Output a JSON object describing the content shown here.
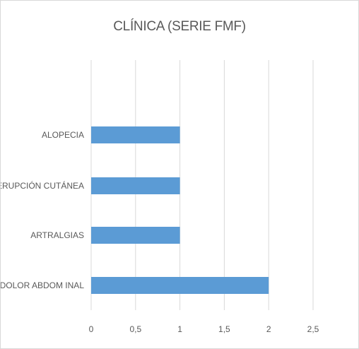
{
  "chart_data": {
    "type": "bar",
    "orientation": "horizontal",
    "title": "CLÍNICA (SERIE FMF)",
    "categories": [
      "ALOPECIA",
      "ERUPCIÓN CUTÁNEA",
      "ARTRALGIAS",
      "DOLOR ABDOM INAL"
    ],
    "values": [
      1,
      1,
      1,
      2
    ],
    "x_ticks": [
      "0",
      "0,5",
      "1",
      "1,5",
      "2",
      "2,5"
    ],
    "xlim": [
      0,
      2.5
    ],
    "grid": true,
    "legend": false,
    "bar_color": "#5b9bd5",
    "gridline_color": "#d9d9d9",
    "text_color": "#595959"
  }
}
